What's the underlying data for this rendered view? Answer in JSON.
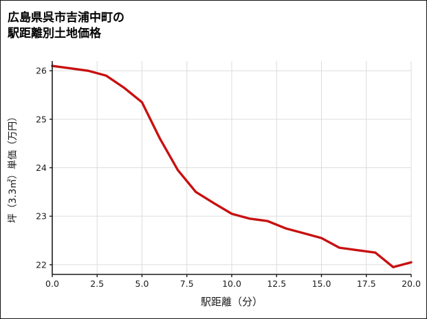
{
  "title": {
    "line1": "広島県呉市吉浦中町の",
    "line2": "駅距離別土地価格"
  },
  "chart_data": {
    "type": "line",
    "title": "広島県呉市吉浦中町の駅距離別土地価格",
    "xlabel": "駅距離（分）",
    "ylabel": "坪（3.3㎡）単価（万円）",
    "x": [
      0,
      1,
      2,
      3,
      4,
      5,
      6,
      7,
      8,
      9,
      10,
      11,
      12,
      13,
      14,
      15,
      16,
      17,
      18,
      19,
      20
    ],
    "y": [
      26.1,
      26.05,
      26.0,
      25.9,
      25.65,
      25.35,
      24.6,
      23.95,
      23.5,
      23.27,
      23.05,
      22.95,
      22.9,
      22.75,
      22.65,
      22.55,
      22.35,
      22.3,
      22.25,
      21.95,
      22.05
    ],
    "xlim": [
      0,
      20
    ],
    "ylim": [
      21.8,
      26.2
    ],
    "x_ticks": [
      0,
      2.5,
      5,
      7.5,
      10,
      12.5,
      15,
      17.5,
      20
    ],
    "x_tick_labels": [
      "0.0",
      "2.5",
      "5.0",
      "7.5",
      "10.0",
      "12.5",
      "15.0",
      "17.5",
      "20.0"
    ],
    "y_ticks": [
      22,
      23,
      24,
      25,
      26
    ],
    "y_tick_labels": [
      "22",
      "23",
      "24",
      "25",
      "26"
    ],
    "grid": true,
    "legend": "none",
    "line_color": "#c81010",
    "grid_color": "#dcdcdc",
    "axis_color": "#1a1a1a"
  }
}
